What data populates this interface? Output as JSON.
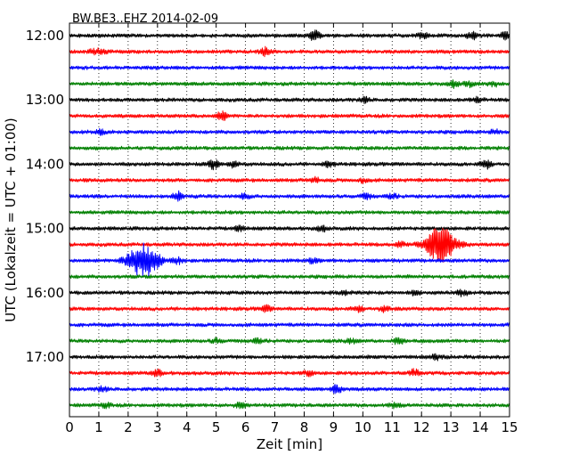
{
  "chart_data": {
    "type": "line",
    "title": "BW.BE3..EHZ 2014-02-09",
    "xlabel": "Zeit  [min]",
    "ylabel": "UTC (Lokalzeit = UTC + 01:00)",
    "xlim": [
      0,
      15
    ],
    "x_ticks": [
      0,
      1,
      2,
      3,
      4,
      5,
      6,
      7,
      8,
      9,
      10,
      11,
      12,
      13,
      14,
      15
    ],
    "x_tick_labels": [
      "0",
      "1",
      "2",
      "3",
      "4",
      "5",
      "6",
      "7",
      "8",
      "9",
      "10",
      "11",
      "12",
      "13",
      "14",
      "15"
    ],
    "y_tick_labels": [
      "12:00",
      "13:00",
      "14:00",
      "15:00",
      "16:00",
      "17:00"
    ],
    "y_ticks_row_index": [
      0,
      4,
      8,
      12,
      16,
      20
    ],
    "grid": "vertical dotted",
    "rows": [
      {
        "start_utc": "12:00",
        "color": "#000000",
        "events": [
          {
            "x": 8.35,
            "amp": 0.6
          },
          {
            "x": 12.05,
            "amp": 0.4
          },
          {
            "x": 13.7,
            "amp": 0.45
          },
          {
            "x": 14.85,
            "amp": 0.4
          }
        ]
      },
      {
        "start_utc": "12:15",
        "color": "#ff0000",
        "events": [
          {
            "x": 0.85,
            "amp": 0.25
          },
          {
            "x": 1.15,
            "amp": 0.3
          },
          {
            "x": 6.65,
            "amp": 0.45
          }
        ]
      },
      {
        "start_utc": "12:30",
        "color": "#0000ff",
        "events": []
      },
      {
        "start_utc": "12:45",
        "color": "#008000",
        "events": [
          {
            "x": 13.1,
            "amp": 0.35
          },
          {
            "x": 13.6,
            "amp": 0.3
          },
          {
            "x": 14.5,
            "amp": 0.25
          }
        ]
      },
      {
        "start_utc": "13:00",
        "color": "#000000",
        "events": [
          {
            "x": 10.05,
            "amp": 0.3
          },
          {
            "x": 13.9,
            "amp": 0.3
          }
        ]
      },
      {
        "start_utc": "13:15",
        "color": "#ff0000",
        "events": [
          {
            "x": 5.2,
            "amp": 0.55
          }
        ]
      },
      {
        "start_utc": "13:30",
        "color": "#0000ff",
        "events": [
          {
            "x": 1.05,
            "amp": 0.25
          },
          {
            "x": 14.5,
            "amp": 0.25
          }
        ]
      },
      {
        "start_utc": "13:45",
        "color": "#008000",
        "events": []
      },
      {
        "start_utc": "14:00",
        "color": "#000000",
        "events": [
          {
            "x": 4.9,
            "amp": 0.55
          },
          {
            "x": 5.6,
            "amp": 0.3
          },
          {
            "x": 8.85,
            "amp": 0.3
          },
          {
            "x": 14.2,
            "amp": 0.5
          }
        ]
      },
      {
        "start_utc": "14:15",
        "color": "#ff0000",
        "events": [
          {
            "x": 8.35,
            "amp": 0.3
          },
          {
            "x": 10.0,
            "amp": 0.25
          }
        ]
      },
      {
        "start_utc": "14:30",
        "color": "#0000ff",
        "events": [
          {
            "x": 3.7,
            "amp": 0.5
          },
          {
            "x": 5.95,
            "amp": 0.3
          },
          {
            "x": 10.1,
            "amp": 0.3
          },
          {
            "x": 11.0,
            "amp": 0.25
          }
        ]
      },
      {
        "start_utc": "14:45",
        "color": "#008000",
        "events": []
      },
      {
        "start_utc": "15:00",
        "color": "#000000",
        "events": [
          {
            "x": 5.8,
            "amp": 0.25
          },
          {
            "x": 8.6,
            "amp": 0.3
          }
        ]
      },
      {
        "start_utc": "15:15",
        "color": "#ff0000",
        "events": [
          {
            "x": 11.3,
            "amp": 0.35
          },
          {
            "x": 12.65,
            "amp": 2.2
          }
        ]
      },
      {
        "start_utc": "15:30",
        "color": "#0000ff",
        "events": [
          {
            "x": 2.5,
            "amp": 2.2
          },
          {
            "x": 3.7,
            "amp": 0.35
          },
          {
            "x": 8.3,
            "amp": 0.25
          }
        ]
      },
      {
        "start_utc": "15:45",
        "color": "#008000",
        "events": []
      },
      {
        "start_utc": "16:00",
        "color": "#000000",
        "events": [
          {
            "x": 9.4,
            "amp": 0.3
          },
          {
            "x": 11.8,
            "amp": 0.3
          },
          {
            "x": 13.4,
            "amp": 0.35
          }
        ]
      },
      {
        "start_utc": "16:15",
        "color": "#ff0000",
        "events": [
          {
            "x": 6.7,
            "amp": 0.35
          },
          {
            "x": 9.85,
            "amp": 0.3
          },
          {
            "x": 10.75,
            "amp": 0.35
          }
        ]
      },
      {
        "start_utc": "16:30",
        "color": "#0000ff",
        "events": []
      },
      {
        "start_utc": "16:45",
        "color": "#008000",
        "events": [
          {
            "x": 5.0,
            "amp": 0.25
          },
          {
            "x": 6.4,
            "amp": 0.25
          },
          {
            "x": 9.6,
            "amp": 0.25
          },
          {
            "x": 11.2,
            "amp": 0.35
          }
        ]
      },
      {
        "start_utc": "17:00",
        "color": "#000000",
        "events": [
          {
            "x": 12.5,
            "amp": 0.3
          }
        ]
      },
      {
        "start_utc": "17:15",
        "color": "#ff0000",
        "events": [
          {
            "x": 3.0,
            "amp": 0.35
          },
          {
            "x": 8.15,
            "amp": 0.3
          },
          {
            "x": 11.75,
            "amp": 0.35
          }
        ]
      },
      {
        "start_utc": "17:30",
        "color": "#0000ff",
        "events": [
          {
            "x": 1.1,
            "amp": 0.3
          },
          {
            "x": 9.1,
            "amp": 0.45
          }
        ]
      },
      {
        "start_utc": "17:45",
        "color": "#008000",
        "events": [
          {
            "x": 1.25,
            "amp": 0.25
          },
          {
            "x": 5.8,
            "amp": 0.3
          },
          {
            "x": 11.1,
            "amp": 0.3
          }
        ]
      }
    ]
  }
}
